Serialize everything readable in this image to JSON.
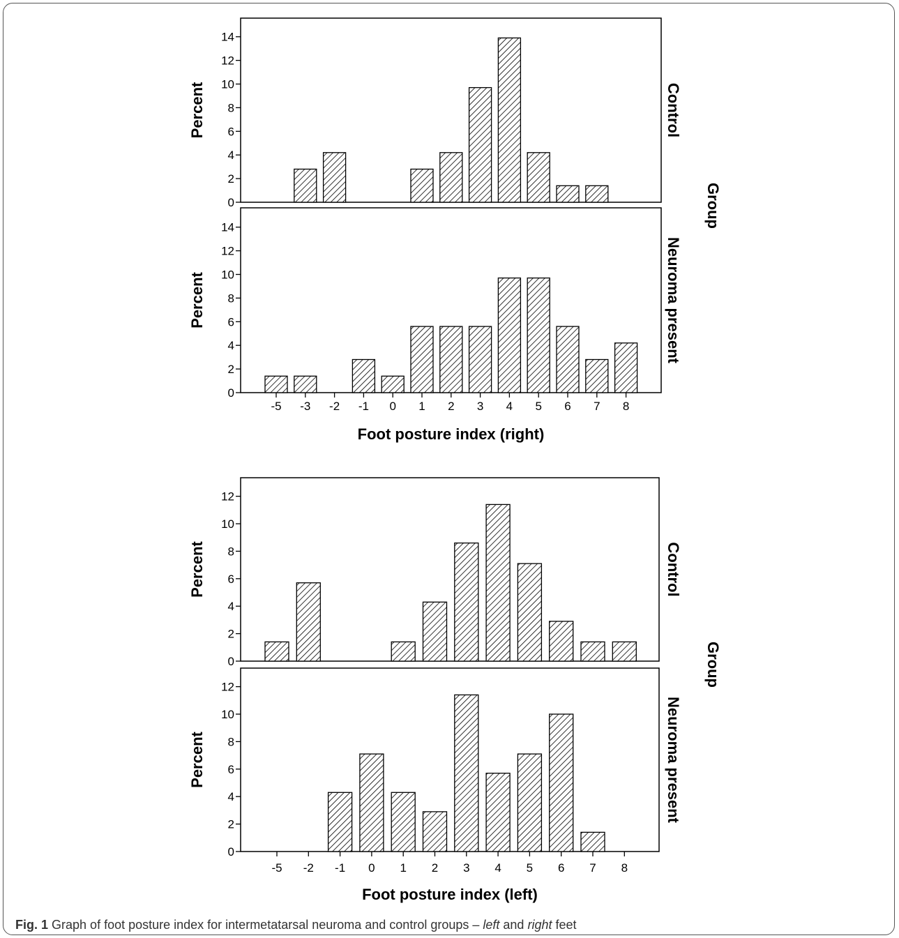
{
  "figure": {
    "caption_label": "Fig. 1",
    "caption_text_a": "Graph of foot posture index for intermetatarsal neuroma and control groups – ",
    "caption_italic_left": "left",
    "caption_text_b": " and ",
    "caption_italic_right": "right",
    "caption_text_c": " feet"
  },
  "chart_data": [
    {
      "type": "bar",
      "xlabel": "Foot posture index (right)",
      "ylabel": "Percent",
      "facet_label": "Group",
      "categories": [
        "-5",
        "-3",
        "-2",
        "-1",
        "0",
        "1",
        "2",
        "3",
        "4",
        "5",
        "6",
        "7",
        "8"
      ],
      "ylim": [
        0,
        15
      ],
      "yticks": [
        0,
        2,
        4,
        6,
        8,
        10,
        12,
        14
      ],
      "series": [
        {
          "name": "Control",
          "values": [
            0,
            2.8,
            4.2,
            0,
            0,
            2.8,
            4.2,
            9.7,
            13.9,
            4.2,
            1.4,
            1.4,
            0
          ]
        },
        {
          "name": "Neuroma present",
          "values": [
            1.4,
            1.4,
            0,
            2.8,
            1.4,
            5.6,
            5.6,
            5.6,
            9.7,
            9.7,
            5.6,
            2.8,
            4.2
          ]
        }
      ],
      "pattern": "diagonal-hatch",
      "grid": false
    },
    {
      "type": "bar",
      "xlabel": "Foot posture index (left)",
      "ylabel": "Percent",
      "facet_label": "Group",
      "categories": [
        "-5",
        "-2",
        "-1",
        "0",
        "1",
        "2",
        "3",
        "4",
        "5",
        "6",
        "7",
        "8"
      ],
      "ylim": [
        0,
        13
      ],
      "yticks": [
        0,
        2,
        4,
        6,
        8,
        10,
        12
      ],
      "series": [
        {
          "name": "Control",
          "values": [
            1.4,
            5.7,
            0,
            0,
            1.4,
            4.3,
            8.6,
            11.4,
            7.1,
            2.9,
            1.4,
            1.4
          ]
        },
        {
          "name": "Neuroma present",
          "values": [
            0,
            0,
            4.3,
            7.1,
            4.3,
            2.9,
            11.4,
            5.7,
            7.1,
            10.0,
            1.4,
            0
          ]
        }
      ],
      "pattern": "diagonal-hatch",
      "grid": false
    }
  ]
}
